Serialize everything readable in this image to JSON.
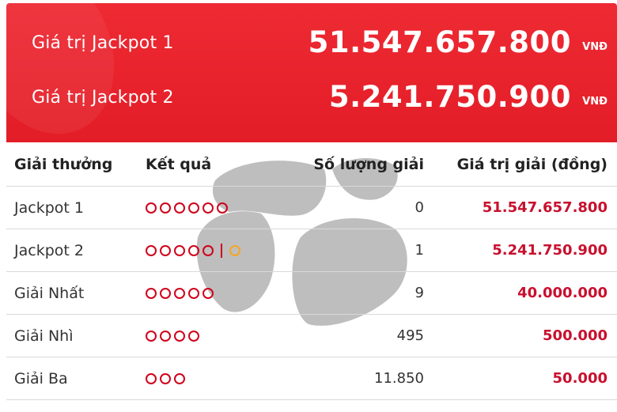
{
  "jackpots": [
    {
      "label": "Giá trị Jackpot 1",
      "value": "51.547.657.800",
      "currency": "VNĐ"
    },
    {
      "label": "Giá trị Jackpot 2",
      "value": "5.241.750.900",
      "currency": "VNĐ"
    }
  ],
  "table": {
    "headers": {
      "prize": "Giải thưởng",
      "result": "Kết quả",
      "count": "Số lượng giải",
      "value": "Giá trị giải (đồng)"
    },
    "rows": [
      {
        "prize": "Jackpot 1",
        "balls": 6,
        "special_balls": 0,
        "count": "0",
        "value": "51.547.657.800"
      },
      {
        "prize": "Jackpot 2",
        "balls": 5,
        "special_balls": 1,
        "count": "1",
        "value": "5.241.750.900"
      },
      {
        "prize": "Giải Nhất",
        "balls": 5,
        "special_balls": 0,
        "count": "9",
        "value": "40.000.000"
      },
      {
        "prize": "Giải Nhì",
        "balls": 4,
        "special_balls": 0,
        "count": "495",
        "value": "500.000"
      },
      {
        "prize": "Giải Ba",
        "balls": 3,
        "special_balls": 0,
        "count": "11.850",
        "value": "50.000"
      }
    ]
  },
  "colors": {
    "banner": "#e31d27",
    "ball": "#d0021b",
    "special_ball": "#f5a623",
    "prize_value": "#c8102e"
  }
}
